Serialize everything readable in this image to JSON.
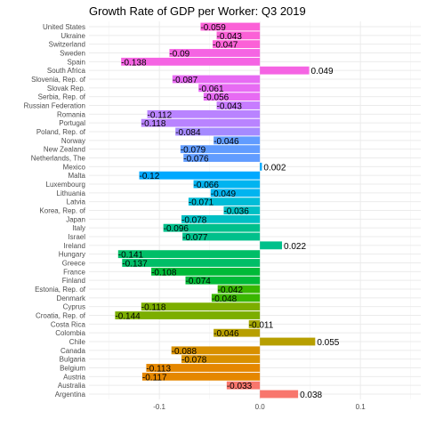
{
  "chart_data": {
    "type": "bar",
    "orientation": "horizontal",
    "title": "Growth Rate of GDP per Worker: Q3 2019",
    "xlabel": "",
    "ylabel": "",
    "xlim": [
      -0.17,
      0.16
    ],
    "x_ticks": [
      -0.1,
      0.0,
      0.1
    ],
    "x_tick_labels": [
      "-0.1",
      "0.0",
      "0.1"
    ],
    "grid": true,
    "legend": "none",
    "categories": [
      "United States",
      "Ukraine",
      "Switzerland",
      "Sweden",
      "Spain",
      "South Africa",
      "Slovenia, Rep. of",
      "Slovak Rep.",
      "Serbia, Rep. of",
      "Russian Federation",
      "Romania",
      "Portugal",
      "Poland, Rep. of",
      "Norway",
      "New Zealand",
      "Netherlands, The",
      "Mexico",
      "Malta",
      "Luxembourg",
      "Lithuania",
      "Latvia",
      "Korea, Rep. of",
      "Japan",
      "Italy",
      "Israel",
      "Ireland",
      "Hungary",
      "Greece",
      "France",
      "Finland",
      "Estonia, Rep. of",
      "Denmark",
      "Cyprus",
      "Croatia, Rep. of",
      "Costa Rica",
      "Colombia",
      "Chile",
      "Canada",
      "Bulgaria",
      "Belgium",
      "Austria",
      "Australia",
      "Argentina"
    ],
    "values": [
      -0.059,
      -0.043,
      -0.047,
      -0.09,
      -0.138,
      0.049,
      -0.087,
      -0.061,
      -0.056,
      -0.043,
      -0.112,
      -0.118,
      -0.084,
      -0.046,
      -0.079,
      -0.076,
      0.002,
      -0.12,
      -0.066,
      -0.049,
      -0.071,
      -0.036,
      -0.078,
      -0.096,
      -0.077,
      0.022,
      -0.141,
      -0.137,
      -0.108,
      -0.074,
      -0.042,
      -0.048,
      -0.118,
      -0.144,
      -0.011,
      -0.046,
      0.055,
      -0.088,
      -0.078,
      -0.113,
      -0.117,
      -0.033,
      0.038
    ],
    "value_labels": [
      "-0.059",
      "-0.043",
      "-0.047",
      "-0.09",
      "-0.138",
      "0.049",
      "-0.087",
      "-0.061",
      "-0.056",
      "-0.043",
      "-0.112",
      "-0.118",
      "-0.084",
      "-0.046",
      "-0.079",
      "-0.076",
      "0.002",
      "-0.12",
      "-0.066",
      "-0.049",
      "-0.071",
      "-0.036",
      "-0.078",
      "-0.096",
      "-0.077",
      "0.022",
      "-0.141",
      "-0.137",
      "-0.108",
      "-0.074",
      "-0.042",
      "-0.048",
      "-0.118",
      "-0.144",
      "-0.011",
      "-0.046",
      "0.055",
      "-0.088",
      "-0.078",
      "-0.113",
      "-0.117",
      "-0.033",
      "0.038"
    ],
    "colors": [
      "#fb61d7",
      "#fb61d7",
      "#fb61d7",
      "#f564e3",
      "#f564e3",
      "#f564e3",
      "#e76bf3",
      "#e76bf3",
      "#e76bf3",
      "#c77cff",
      "#b983ff",
      "#b983ff",
      "#a58aff",
      "#619cff",
      "#619cff",
      "#619cff",
      "#00a9ff",
      "#00a9ff",
      "#00b4f0",
      "#00b4f0",
      "#00bdd8",
      "#00bfc4",
      "#00bfc4",
      "#00c08b",
      "#00c08b",
      "#00c08b",
      "#00be67",
      "#00be67",
      "#00ba38",
      "#00ba38",
      "#39b600",
      "#39b600",
      "#7cae00",
      "#7cae00",
      "#a3a500",
      "#b79f00",
      "#b79f00",
      "#d89000",
      "#d89000",
      "#e58700",
      "#e58700",
      "#f8766d",
      "#f8766d"
    ]
  }
}
